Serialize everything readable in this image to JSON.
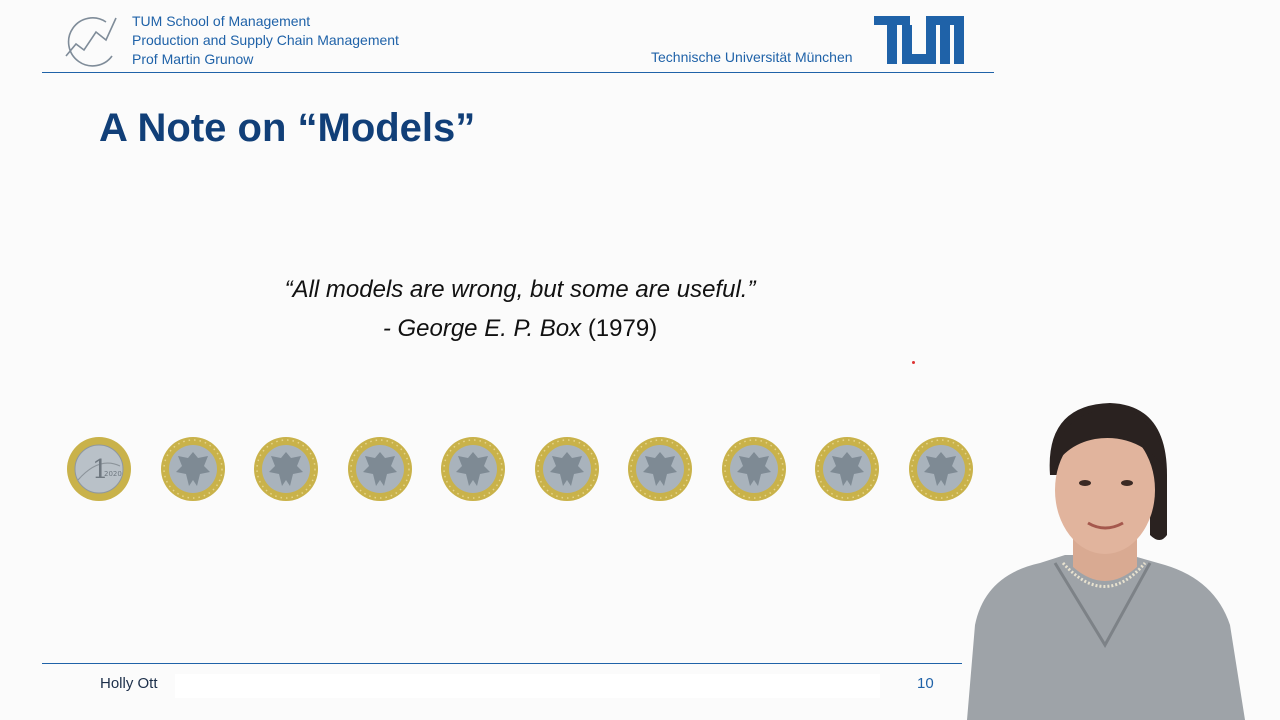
{
  "header": {
    "school": "TUM School of Management",
    "chair": "Production and Supply Chain Management",
    "professor": "Prof Martin Grunow",
    "university": "Technische Universität München"
  },
  "slide": {
    "title": "A Note on “Models”",
    "quote_text": "“All models are wrong, but some are useful.”",
    "quote_author": "- George E. P. Box",
    "quote_year": "(1979)",
    "coins": [
      {
        "face": "1",
        "year": "2020",
        "type": "value-side"
      },
      {
        "type": "eagle-side"
      },
      {
        "type": "eagle-side"
      },
      {
        "type": "eagle-side"
      },
      {
        "type": "eagle-side"
      },
      {
        "type": "eagle-side"
      },
      {
        "type": "eagle-side"
      },
      {
        "type": "eagle-side"
      },
      {
        "type": "eagle-side"
      },
      {
        "type": "eagle-side"
      }
    ]
  },
  "footer": {
    "presenter": "Holly Ott",
    "page": "10"
  },
  "colors": {
    "brand_blue": "#1f62a8",
    "title_blue": "#113f78",
    "coin_gold": "#c9b24a",
    "coin_silver": "#a9b3bc"
  }
}
